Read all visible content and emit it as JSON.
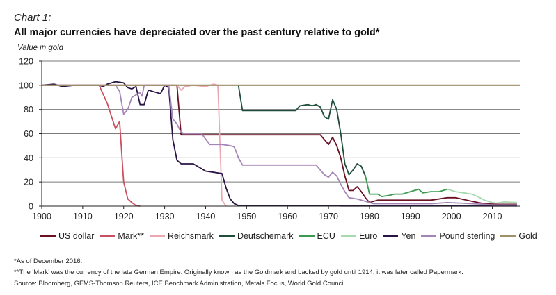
{
  "header": {
    "kicker": "Chart 1:",
    "title": "All major currencies have depreciated over the past century relative to gold*",
    "ylabel": "Value in gold"
  },
  "notes": [
    "*As of December 2016.",
    "**The 'Mark' was the currency of the late German Empire. Originally known as the Goldmark and backed by gold until 1914, it was later called Papermark.",
    "Source: Bloomberg, GFMS-Thomson Reuters, ICE Benchmark Administration, Metals Focus, World Gold Council"
  ],
  "chart_data": {
    "type": "line",
    "title": "All major currencies have depreciated over the past century relative to gold*",
    "xlabel": "",
    "ylabel": "Value in gold",
    "xlim": [
      1900,
      2016.7
    ],
    "ylim": [
      0,
      120
    ],
    "xticks": [
      1900,
      1910,
      1920,
      1930,
      1940,
      1950,
      1960,
      1970,
      1980,
      1990,
      2000,
      2010
    ],
    "yticks": [
      0,
      20,
      40,
      60,
      80,
      100,
      120
    ],
    "grid": "horizontal",
    "legend": "bottom",
    "series": [
      {
        "name": "US dollar",
        "color": "#6b0f24",
        "points": [
          [
            1900,
            100
          ],
          [
            1933,
            100
          ],
          [
            1934,
            59
          ],
          [
            1968,
            59
          ],
          [
            1969,
            55
          ],
          [
            1970,
            51
          ],
          [
            1971,
            57
          ],
          [
            1972,
            50
          ],
          [
            1973,
            40
          ],
          [
            1974,
            25
          ],
          [
            1975,
            13
          ],
          [
            1976,
            13
          ],
          [
            1977,
            16
          ],
          [
            1978,
            12
          ],
          [
            1979,
            7
          ],
          [
            1980,
            3
          ],
          [
            1982,
            5
          ],
          [
            1985,
            5
          ],
          [
            1990,
            5
          ],
          [
            1995,
            5
          ],
          [
            1999,
            7
          ],
          [
            2001,
            7
          ],
          [
            2005,
            4
          ],
          [
            2008,
            2
          ],
          [
            2011,
            1.5
          ],
          [
            2016,
            1.5
          ]
        ]
      },
      {
        "name": "Mark**",
        "color": "#c9505f",
        "points": [
          [
            1900,
            100
          ],
          [
            1914,
            100
          ],
          [
            1916,
            85
          ],
          [
            1918,
            64
          ],
          [
            1919,
            70
          ],
          [
            1920,
            20
          ],
          [
            1921,
            6
          ],
          [
            1922,
            3
          ],
          [
            1923,
            0.5
          ],
          [
            1924,
            0
          ]
        ]
      },
      {
        "name": "Reichsmark",
        "color": "#eaa8b4",
        "points": [
          [
            1924,
            100
          ],
          [
            1933,
            100
          ],
          [
            1934,
            96
          ],
          [
            1935,
            99
          ],
          [
            1937,
            100
          ],
          [
            1940,
            99
          ],
          [
            1942,
            101
          ],
          [
            1943,
            100
          ],
          [
            1944,
            5
          ],
          [
            1945,
            0
          ]
        ]
      },
      {
        "name": "Deutschemark",
        "color": "#1e4d3a",
        "points": [
          [
            1948,
            100
          ],
          [
            1949,
            79
          ],
          [
            1962,
            79
          ],
          [
            1963,
            83
          ],
          [
            1965,
            84
          ],
          [
            1966,
            83
          ],
          [
            1967,
            84
          ],
          [
            1968,
            82
          ],
          [
            1969,
            74
          ],
          [
            1970,
            72
          ],
          [
            1971,
            88
          ],
          [
            1972,
            80
          ],
          [
            1973,
            60
          ],
          [
            1974,
            35
          ],
          [
            1975,
            26
          ],
          [
            1976,
            30
          ],
          [
            1977,
            35
          ],
          [
            1978,
            33
          ],
          [
            1979,
            25
          ]
        ]
      },
      {
        "name": "ECU",
        "color": "#3a9a4f",
        "points": [
          [
            1979,
            25
          ],
          [
            1980,
            10
          ],
          [
            1982,
            10
          ],
          [
            1983,
            8
          ],
          [
            1985,
            9
          ],
          [
            1986,
            10
          ],
          [
            1988,
            10
          ],
          [
            1990,
            12
          ],
          [
            1992,
            14
          ],
          [
            1993,
            11
          ],
          [
            1995,
            12
          ],
          [
            1997,
            12
          ],
          [
            1998,
            13
          ],
          [
            1999,
            14
          ]
        ]
      },
      {
        "name": "Euro",
        "color": "#a8dab0",
        "points": [
          [
            1999,
            14
          ],
          [
            2001,
            12
          ],
          [
            2003,
            11
          ],
          [
            2005,
            10
          ],
          [
            2007,
            7
          ],
          [
            2008,
            5
          ],
          [
            2010,
            3
          ],
          [
            2011,
            2.5
          ],
          [
            2013,
            3.5
          ],
          [
            2016,
            3
          ]
        ]
      },
      {
        "name": "Yen",
        "color": "#2a1446",
        "points": [
          [
            1900,
            100
          ],
          [
            1903,
            101
          ],
          [
            1905,
            99
          ],
          [
            1908,
            100
          ],
          [
            1910,
            100
          ],
          [
            1914,
            100
          ],
          [
            1915,
            99
          ],
          [
            1916,
            101
          ],
          [
            1918,
            103
          ],
          [
            1920,
            102
          ],
          [
            1921,
            98
          ],
          [
            1922,
            97
          ],
          [
            1923,
            99
          ],
          [
            1924,
            84
          ],
          [
            1925,
            84
          ],
          [
            1926,
            96
          ],
          [
            1928,
            94
          ],
          [
            1929,
            93
          ],
          [
            1930,
            100
          ],
          [
            1931,
            98
          ],
          [
            1932,
            55
          ],
          [
            1933,
            38
          ],
          [
            1934,
            35
          ],
          [
            1937,
            35
          ],
          [
            1938,
            33
          ],
          [
            1940,
            29
          ],
          [
            1942,
            28
          ],
          [
            1944,
            27
          ],
          [
            1945,
            15
          ],
          [
            1946,
            6
          ],
          [
            1947,
            2
          ],
          [
            1948,
            0.5
          ],
          [
            1972,
            0.5
          ],
          [
            1973,
            0.2
          ],
          [
            2016,
            0.2
          ]
        ]
      },
      {
        "name": "Pound sterling",
        "color": "#a585b8",
        "points": [
          [
            1900,
            100
          ],
          [
            1918,
            100
          ],
          [
            1919,
            95
          ],
          [
            1920,
            76
          ],
          [
            1921,
            80
          ],
          [
            1922,
            90
          ],
          [
            1924,
            94
          ],
          [
            1924.5,
            91
          ],
          [
            1925,
            100
          ],
          [
            1931,
            100
          ],
          [
            1932,
            72
          ],
          [
            1933,
            68
          ],
          [
            1934,
            61
          ],
          [
            1935,
            60
          ],
          [
            1939,
            60
          ],
          [
            1941,
            51
          ],
          [
            1944,
            51
          ],
          [
            1946,
            50
          ],
          [
            1947,
            49
          ],
          [
            1948,
            40
          ],
          [
            1949,
            34
          ],
          [
            1967,
            34
          ],
          [
            1968,
            30
          ],
          [
            1969,
            26
          ],
          [
            1970,
            24
          ],
          [
            1971,
            28
          ],
          [
            1972,
            25
          ],
          [
            1973,
            18
          ],
          [
            1974,
            12
          ],
          [
            1975,
            7
          ],
          [
            1977,
            6
          ],
          [
            1979,
            4
          ],
          [
            1981,
            2
          ],
          [
            1985,
            2
          ],
          [
            1990,
            2
          ],
          [
            1995,
            2
          ],
          [
            1999,
            3
          ],
          [
            2002,
            2.5
          ],
          [
            2005,
            2
          ],
          [
            2008,
            1.5
          ],
          [
            2010,
            1
          ],
          [
            2016,
            1
          ]
        ]
      },
      {
        "name": "Gold",
        "color": "#a09068",
        "points": [
          [
            1900,
            100
          ],
          [
            2016.7,
            100
          ]
        ]
      }
    ]
  }
}
